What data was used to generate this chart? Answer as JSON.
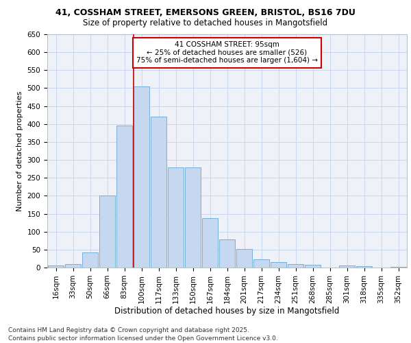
{
  "title1": "41, COSSHAM STREET, EMERSONS GREEN, BRISTOL, BS16 7DU",
  "title2": "Size of property relative to detached houses in Mangotsfield",
  "xlabel": "Distribution of detached houses by size in Mangotsfield",
  "ylabel": "Number of detached properties",
  "categories": [
    "16sqm",
    "33sqm",
    "50sqm",
    "66sqm",
    "83sqm",
    "100sqm",
    "117sqm",
    "133sqm",
    "150sqm",
    "167sqm",
    "184sqm",
    "201sqm",
    "217sqm",
    "234sqm",
    "251sqm",
    "268sqm",
    "285sqm",
    "301sqm",
    "318sqm",
    "335sqm",
    "352sqm"
  ],
  "values": [
    5,
    10,
    43,
    200,
    395,
    505,
    420,
    280,
    280,
    137,
    78,
    52,
    22,
    15,
    10,
    7,
    0,
    5,
    3,
    0,
    2
  ],
  "bar_color": "#c5d8f0",
  "bar_edge_color": "#7aaed6",
  "annotation_title": "41 COSSHAM STREET: 95sqm",
  "annotation_line1": "← 25% of detached houses are smaller (526)",
  "annotation_line2": "75% of semi-detached houses are larger (1,604) →",
  "annotation_box_color": "#ffffff",
  "annotation_box_edge_color": "#cc0000",
  "red_line_color": "#cc0000",
  "red_line_index": 4.55,
  "grid_color": "#c8d8ee",
  "background_color": "#eef2f8",
  "footer1": "Contains HM Land Registry data © Crown copyright and database right 2025.",
  "footer2": "Contains public sector information licensed under the Open Government Licence v3.0.",
  "ylim": [
    0,
    650
  ],
  "title1_fontsize": 9,
  "title2_fontsize": 8.5,
  "ylabel_fontsize": 8,
  "xlabel_fontsize": 8.5,
  "tick_fontsize": 7.5,
  "annot_fontsize": 7.5,
  "footer_fontsize": 6.5
}
